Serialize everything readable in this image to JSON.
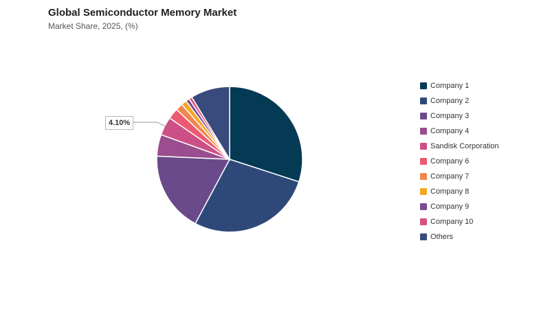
{
  "title": "Global Semiconductor Memory Market",
  "subtitle": "Market Share, 2025, (%)",
  "chart_data": {
    "type": "pie",
    "title": "Global Semiconductor Memory Market",
    "subtitle": "Market Share, 2025, (%)",
    "legend_position": "right",
    "slices": [
      {
        "label": "Company 1",
        "value": 30.0,
        "color": "#053a55"
      },
      {
        "label": "Company 2",
        "value": 27.8,
        "color": "#2e4979"
      },
      {
        "label": "Company 3",
        "value": 17.9,
        "color": "#6a4a8a"
      },
      {
        "label": "Company 4",
        "value": 4.8,
        "color": "#9a4d8f"
      },
      {
        "label": "Sandisk Corporation",
        "value": 4.1,
        "color": "#cc4f85"
      },
      {
        "label": "Company 6",
        "value": 2.4,
        "color": "#ec5a72"
      },
      {
        "label": "Company 7",
        "value": 1.6,
        "color": "#f1864e"
      },
      {
        "label": "Company 8",
        "value": 1.2,
        "color": "#f6a623"
      },
      {
        "label": "Company 9",
        "value": 0.8,
        "color": "#7d4c8e"
      },
      {
        "label": "Company 10",
        "value": 0.7,
        "color": "#d8527f"
      },
      {
        "label": "Others",
        "value": 8.7,
        "color": "#384b7c"
      }
    ],
    "annotations": [
      {
        "slice": "Sandisk Corporation",
        "text": "4.10%"
      }
    ]
  }
}
